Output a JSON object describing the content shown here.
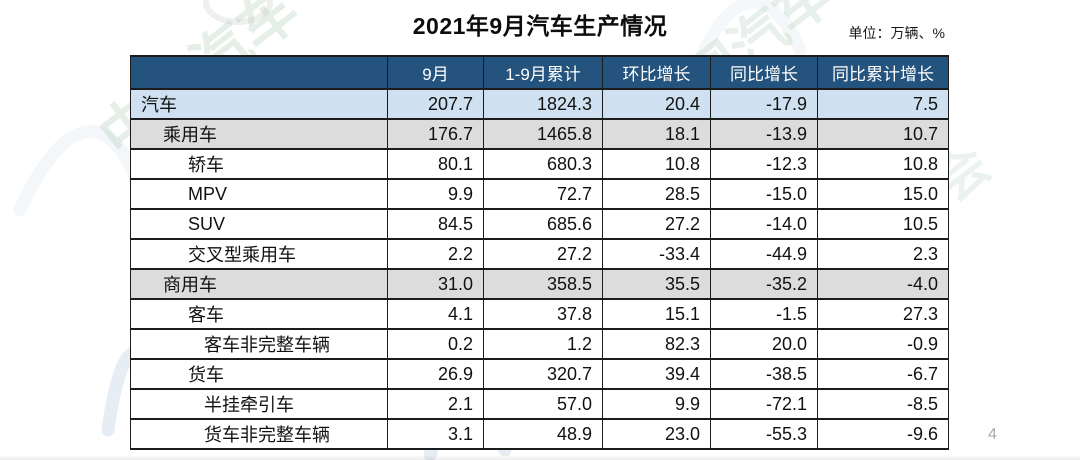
{
  "title": "2021年9月汽车生产情况",
  "unit_label": "单位：万辆、%",
  "page_number": "4",
  "watermark": {
    "org_name": "中国汽车工业协会",
    "text_part1": "中国汽车",
    "text_part2": "工业协会"
  },
  "colors": {
    "header_bg": "#24537d",
    "row_highlight": "#cfe1f1",
    "row_subtotal": "#dcdcdc",
    "border_color": "#1c1c1c",
    "title_color": "#0d0d0d",
    "page_num_color": "#aaaaaa",
    "watermark_green": "#a9c9b4",
    "watermark_blue": "#d3dfeb"
  },
  "table": {
    "columns": [
      "",
      "9月",
      "1-9月累计",
      "环比增长",
      "同比增长",
      "同比累计增长"
    ],
    "rows": [
      {
        "label": "汽车",
        "indent": 0,
        "style": "blue",
        "values": [
          "207.7",
          "1824.3",
          "20.4",
          "-17.9",
          "7.5"
        ]
      },
      {
        "label": "乘用车",
        "indent": 1,
        "style": "gray",
        "values": [
          "176.7",
          "1465.8",
          "18.1",
          "-13.9",
          "10.7"
        ]
      },
      {
        "label": "轿车",
        "indent": 2,
        "style": "white",
        "values": [
          "80.1",
          "680.3",
          "10.8",
          "-12.3",
          "10.8"
        ]
      },
      {
        "label": "MPV",
        "indent": 2,
        "style": "white",
        "values": [
          "9.9",
          "72.7",
          "28.5",
          "-15.0",
          "15.0"
        ]
      },
      {
        "label": "SUV",
        "indent": 2,
        "style": "white",
        "values": [
          "84.5",
          "685.6",
          "27.2",
          "-14.0",
          "10.5"
        ]
      },
      {
        "label": "交叉型乘用车",
        "indent": 2,
        "style": "white",
        "values": [
          "2.2",
          "27.2",
          "-33.4",
          "-44.9",
          "2.3"
        ]
      },
      {
        "label": "商用车",
        "indent": 1,
        "style": "gray",
        "values": [
          "31.0",
          "358.5",
          "35.5",
          "-35.2",
          "-4.0"
        ]
      },
      {
        "label": "客车",
        "indent": 2,
        "style": "white",
        "values": [
          "4.1",
          "37.8",
          "15.1",
          "-1.5",
          "27.3"
        ]
      },
      {
        "label": "客车非完整车辆",
        "indent": 3,
        "style": "white",
        "values": [
          "0.2",
          "1.2",
          "82.3",
          "20.0",
          "-0.9"
        ]
      },
      {
        "label": "货车",
        "indent": 2,
        "style": "white",
        "values": [
          "26.9",
          "320.7",
          "39.4",
          "-38.5",
          "-6.7"
        ]
      },
      {
        "label": "半挂牵引车",
        "indent": 3,
        "style": "white",
        "values": [
          "2.1",
          "57.0",
          "9.9",
          "-72.1",
          "-8.5"
        ]
      },
      {
        "label": "货车非完整车辆",
        "indent": 3,
        "style": "white",
        "values": [
          "3.1",
          "48.9",
          "23.0",
          "-55.3",
          "-9.6"
        ]
      }
    ]
  }
}
